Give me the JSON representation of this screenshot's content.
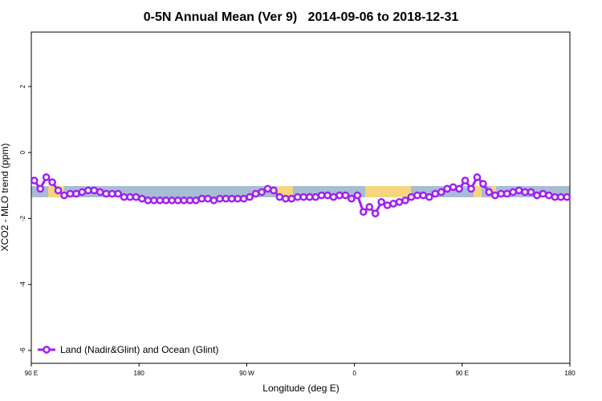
{
  "chart_data": {
    "type": "line",
    "title": "0-5N Annual Mean (Ver 9)   2014-09-06 to 2018-12-31",
    "x_label": "Longitude (deg E)",
    "y_label": "XCO2 - MLO trend (ppm)",
    "xlim": [
      90,
      540
    ],
    "ylim": [
      -6.39,
      3.65
    ],
    "xticks": [
      {
        "value": 90,
        "label": "90 E"
      },
      {
        "value": 180,
        "label": "180"
      },
      {
        "value": 270,
        "label": "90 W"
      },
      {
        "value": 360,
        "label": "0"
      },
      {
        "value": 450,
        "label": "90 E"
      },
      {
        "value": 540,
        "label": "180"
      }
    ],
    "yticks": [
      -6,
      -4,
      -2,
      0,
      2
    ],
    "legend": "bottom-left",
    "x": [
      92.5,
      97.5,
      102.5,
      107.5,
      112.5,
      117.5,
      122.5,
      127.5,
      132.5,
      137.5,
      142.5,
      147.5,
      152.5,
      157.5,
      162.5,
      167.5,
      172.5,
      177.5,
      182.5,
      187.5,
      192.5,
      197.5,
      202.5,
      207.5,
      212.5,
      217.5,
      222.5,
      227.5,
      232.5,
      237.5,
      242.5,
      247.5,
      252.5,
      257.5,
      262.5,
      267.5,
      272.5,
      277.5,
      282.5,
      287.5,
      292.5,
      297.5,
      302.5,
      307.5,
      312.5,
      317.5,
      322.5,
      327.5,
      332.5,
      337.5,
      342.5,
      347.5,
      352.5,
      357.5,
      362.5,
      367.5,
      372.5,
      377.5,
      382.5,
      387.5,
      392.5,
      397.5,
      402.5,
      407.5,
      412.5,
      417.5,
      422.5,
      427.5,
      432.5,
      437.5,
      442.5,
      447.5,
      452.5,
      457.5,
      462.5,
      467.5,
      472.5,
      477.5,
      482.5,
      487.5,
      492.5,
      497.5,
      502.5,
      507.5,
      512.5,
      517.5,
      522.5,
      527.5,
      532.5,
      537.5
    ],
    "series": [
      {
        "name": "Land (Nadir&Glint) and Ocean (Glint)",
        "color": "#a020f0",
        "values": [
          -0.85,
          -1.1,
          -0.75,
          -0.9,
          -1.15,
          -1.3,
          -1.25,
          -1.25,
          -1.2,
          -1.15,
          -1.15,
          -1.2,
          -1.25,
          -1.25,
          -1.25,
          -1.35,
          -1.35,
          -1.35,
          -1.4,
          -1.45,
          -1.45,
          -1.45,
          -1.45,
          -1.45,
          -1.45,
          -1.45,
          -1.45,
          -1.45,
          -1.4,
          -1.4,
          -1.45,
          -1.4,
          -1.4,
          -1.4,
          -1.4,
          -1.4,
          -1.35,
          -1.25,
          -1.2,
          -1.1,
          -1.15,
          -1.35,
          -1.4,
          -1.4,
          -1.35,
          -1.35,
          -1.35,
          -1.35,
          -1.3,
          -1.3,
          -1.35,
          -1.3,
          -1.3,
          -1.4,
          -1.3,
          -1.8,
          -1.65,
          -1.85,
          -1.5,
          -1.6,
          -1.55,
          -1.5,
          -1.45,
          -1.35,
          -1.3,
          -1.3,
          -1.35,
          -1.25,
          -1.2,
          -1.1,
          -1.05,
          -1.1,
          -0.85,
          -1.1,
          -0.75,
          -0.95,
          -1.2,
          -1.3,
          -1.25,
          -1.25,
          -1.2,
          -1.15,
          -1.2,
          -1.2,
          -1.3,
          -1.25,
          -1.3,
          -1.35,
          -1.35,
          -1.35
        ]
      }
    ]
  }
}
